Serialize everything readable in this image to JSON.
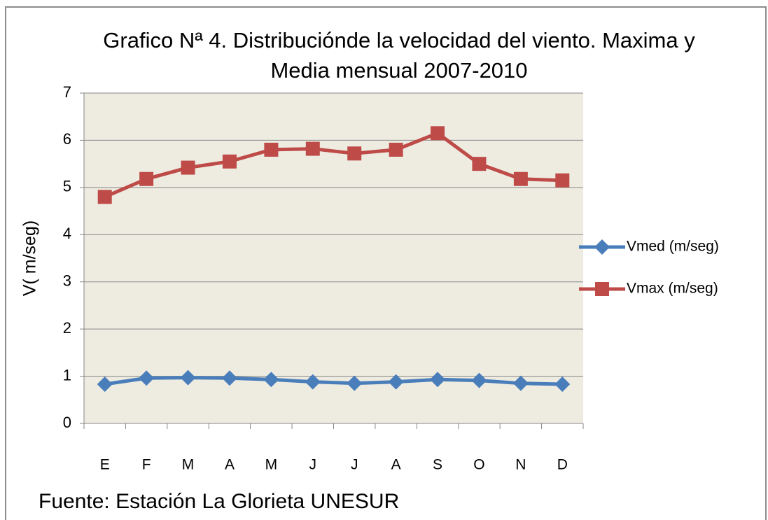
{
  "chart_data": {
    "type": "line",
    "title": [
      "Grafico Nª 4. Distribuciónde la velocidad del viento. Maxima y",
      "Media mensual  2007-2010"
    ],
    "y_label": "V( m/seg)",
    "annotation": "Fuente: Estación La Glorieta UNESUR",
    "categories": [
      "E",
      "F",
      "M",
      "A",
      "M",
      "J",
      "J",
      "A",
      "S",
      "O",
      "N",
      "D"
    ],
    "series": [
      {
        "name": "Vmed (m/seg)",
        "color": "#4a7ebb",
        "marker": "diamond",
        "values": [
          0.83,
          0.96,
          0.97,
          0.96,
          0.93,
          0.88,
          0.85,
          0.88,
          0.93,
          0.91,
          0.85,
          0.83
        ]
      },
      {
        "name": "Vmax (m/seg)",
        "color": "#be4b48",
        "marker": "square",
        "values": [
          4.8,
          5.18,
          5.42,
          5.55,
          5.8,
          5.82,
          5.72,
          5.8,
          6.15,
          5.5,
          5.18,
          5.15
        ]
      }
    ],
    "ylim": [
      0,
      7
    ],
    "yticks": [
      0,
      1,
      2,
      3,
      4,
      5,
      6,
      7
    ],
    "grid": true,
    "legend": "right"
  }
}
